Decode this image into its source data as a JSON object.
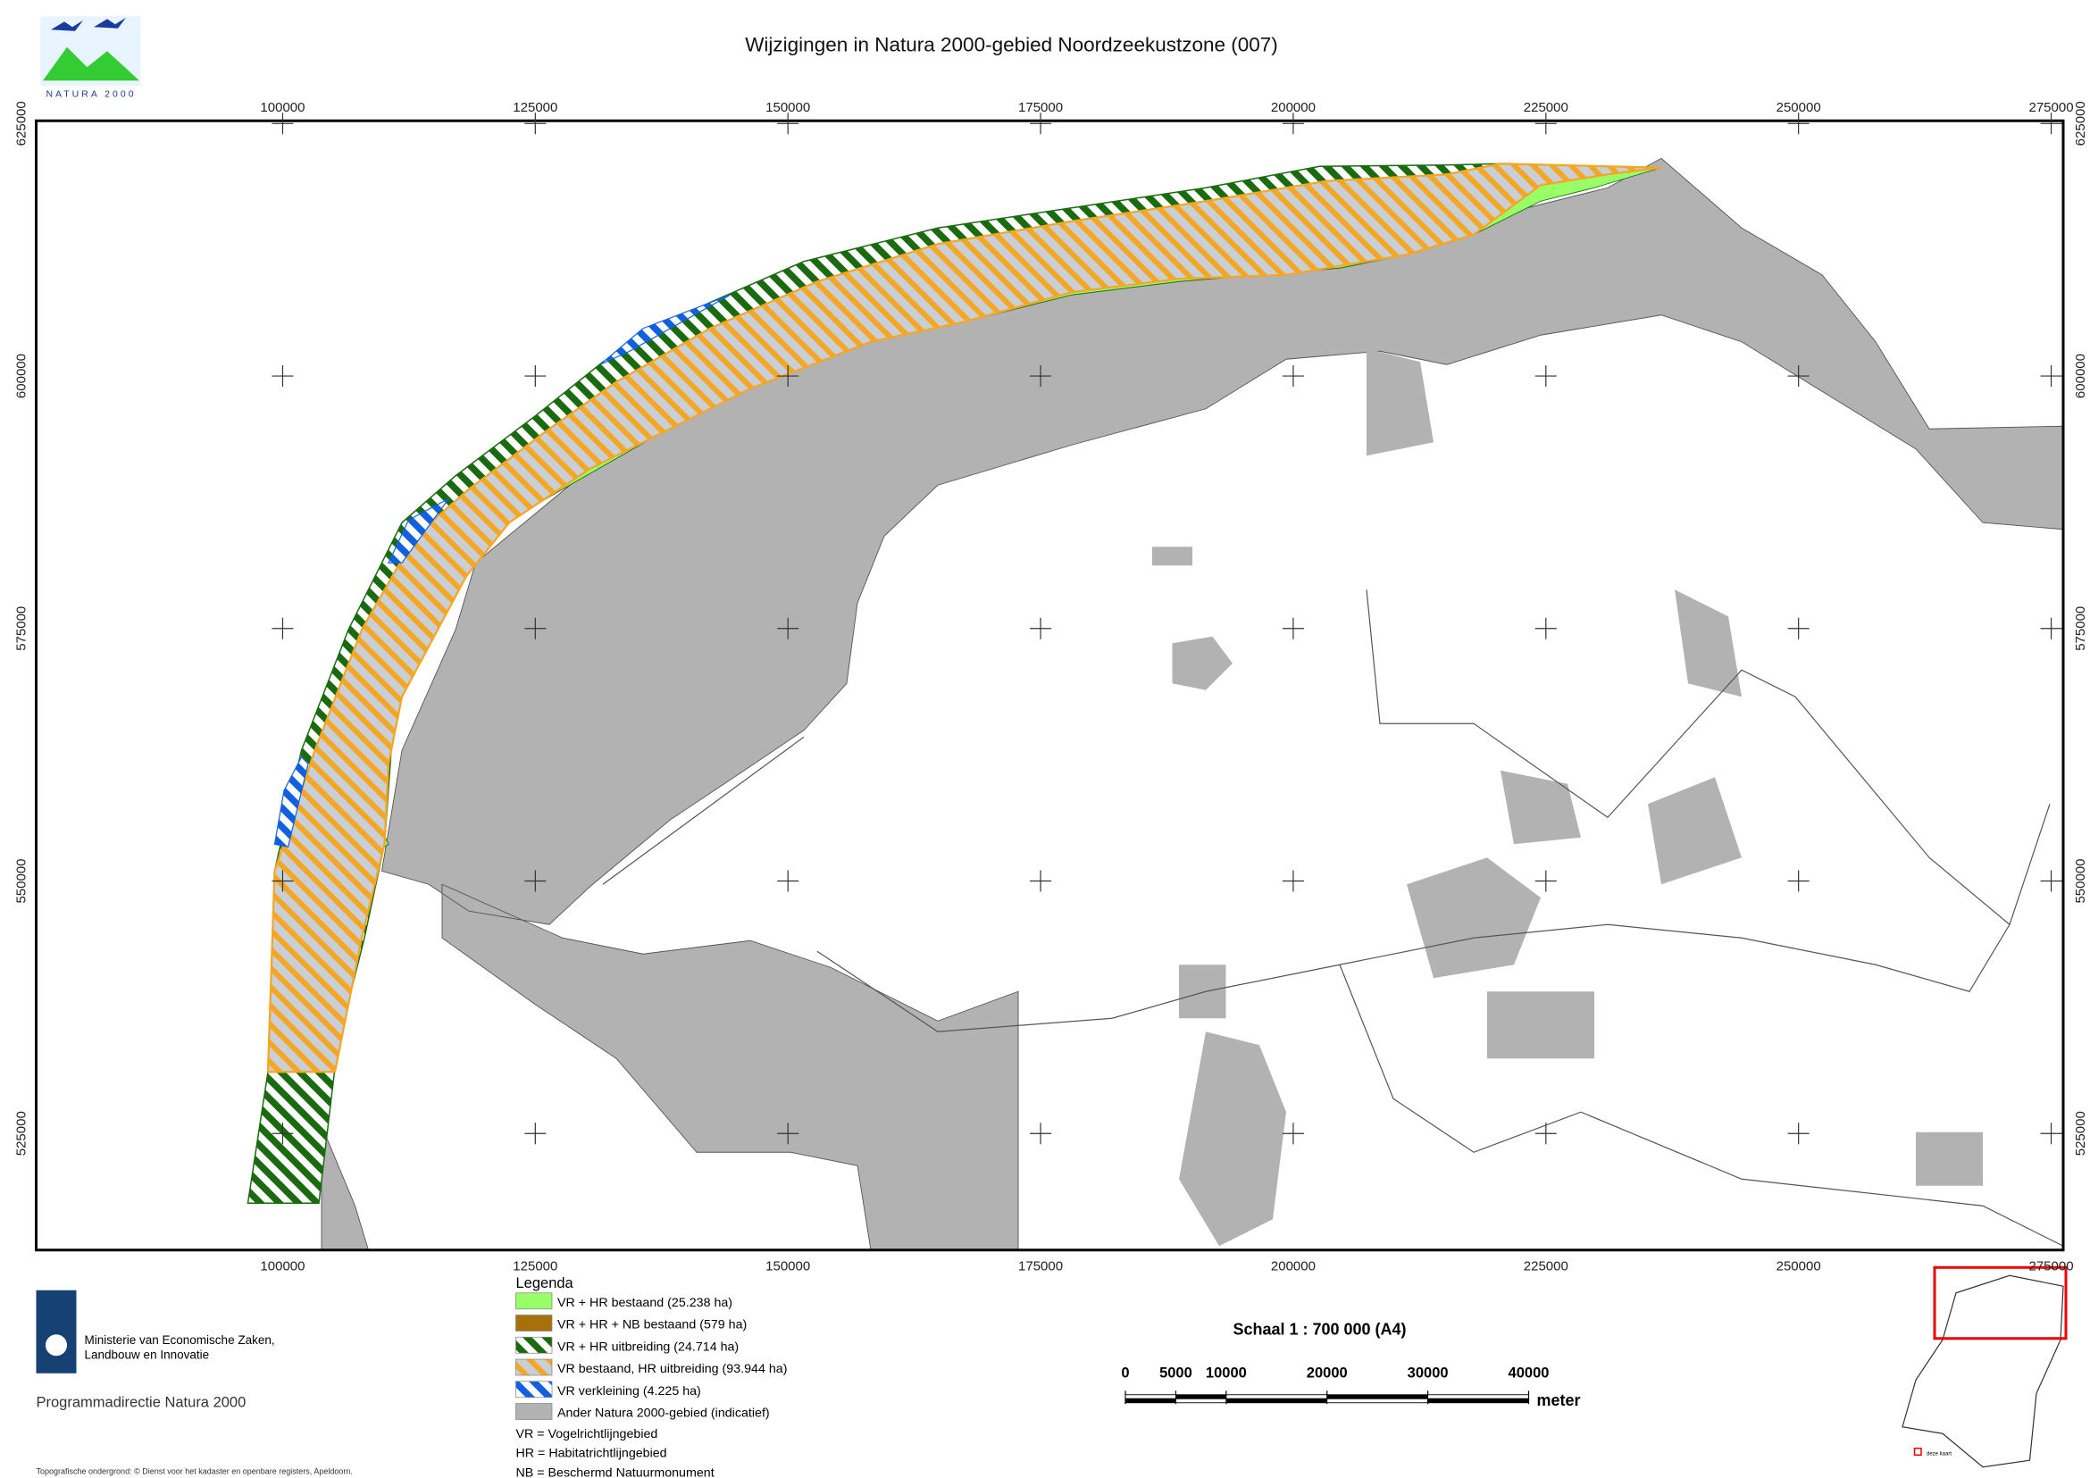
{
  "title": "Wijzigingen in Natura 2000-gebied Noordzeekustzone (007)",
  "logo_text": "NATURA 2000",
  "map": {
    "xlim": [
      75610,
      276190
    ],
    "ylim": [
      513460,
      625270
    ],
    "xticks": [
      100000,
      125000,
      150000,
      175000,
      200000,
      225000,
      250000,
      275000
    ],
    "yticks": [
      625000,
      600000,
      575000,
      550000,
      525000
    ]
  },
  "legend": {
    "title": "Legenda",
    "items": [
      {
        "label": "VR + HR bestaand (25.238 ha)",
        "color": "#99ff66"
      },
      {
        "label": "VR + HR + NB bestaand (579 ha)",
        "color": "#a8700a"
      },
      {
        "label": "VR + HR uitbreiding (24.714 ha)",
        "color": "#1a6b10",
        "hatched": true
      },
      {
        "label": "VR bestaand, HR uitbreiding (93.944 ha)",
        "color": "#f5a623",
        "hatched": true
      },
      {
        "label": "VR verkleining (4.225 ha)",
        "color": "#1060e0",
        "hatched": true
      },
      {
        "label": "Ander Natura 2000-gebied (indicatief)",
        "color": "#b2b2b2"
      }
    ],
    "notes": [
      "VR = Vogelrichtlijngebied",
      "HR = Habitatrichtlijngebied",
      "NB = Beschermd Natuurmonument"
    ]
  },
  "scale": {
    "title": "Schaal 1 : 700 000 (A4)",
    "lim": [
      0,
      40000
    ],
    "ticks": [
      0,
      5000,
      10000,
      20000,
      30000,
      40000
    ],
    "unit": "meter"
  },
  "ministry": [
    "Ministerie van Economische Zaken,",
    "Landbouw en Innovatie"
  ],
  "programme": "Programmadirectie Natura 2000",
  "credits": "Topografische ondergrond: © Dienst voor het kadaster en openbare registers, Apeldoorn.",
  "inset_label": "deze kaart"
}
